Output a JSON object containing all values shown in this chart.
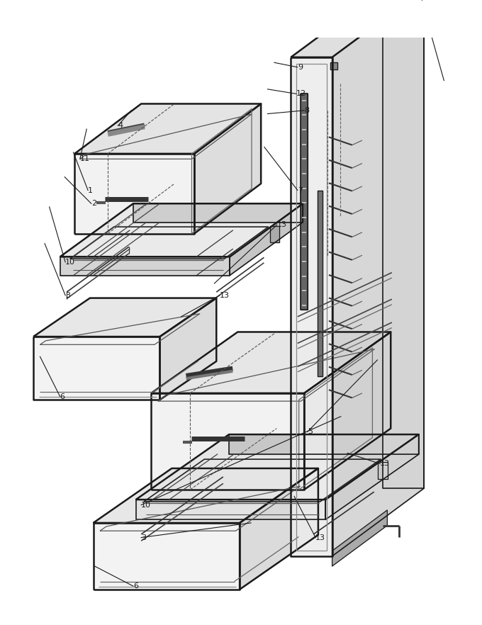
{
  "bg_color": "#ffffff",
  "lc": "#1a1a1a",
  "lw_thick": 1.8,
  "lw_thin": 0.9,
  "lw_med": 1.2,
  "figsize": [
    6.8,
    8.82
  ],
  "dpi": 100
}
